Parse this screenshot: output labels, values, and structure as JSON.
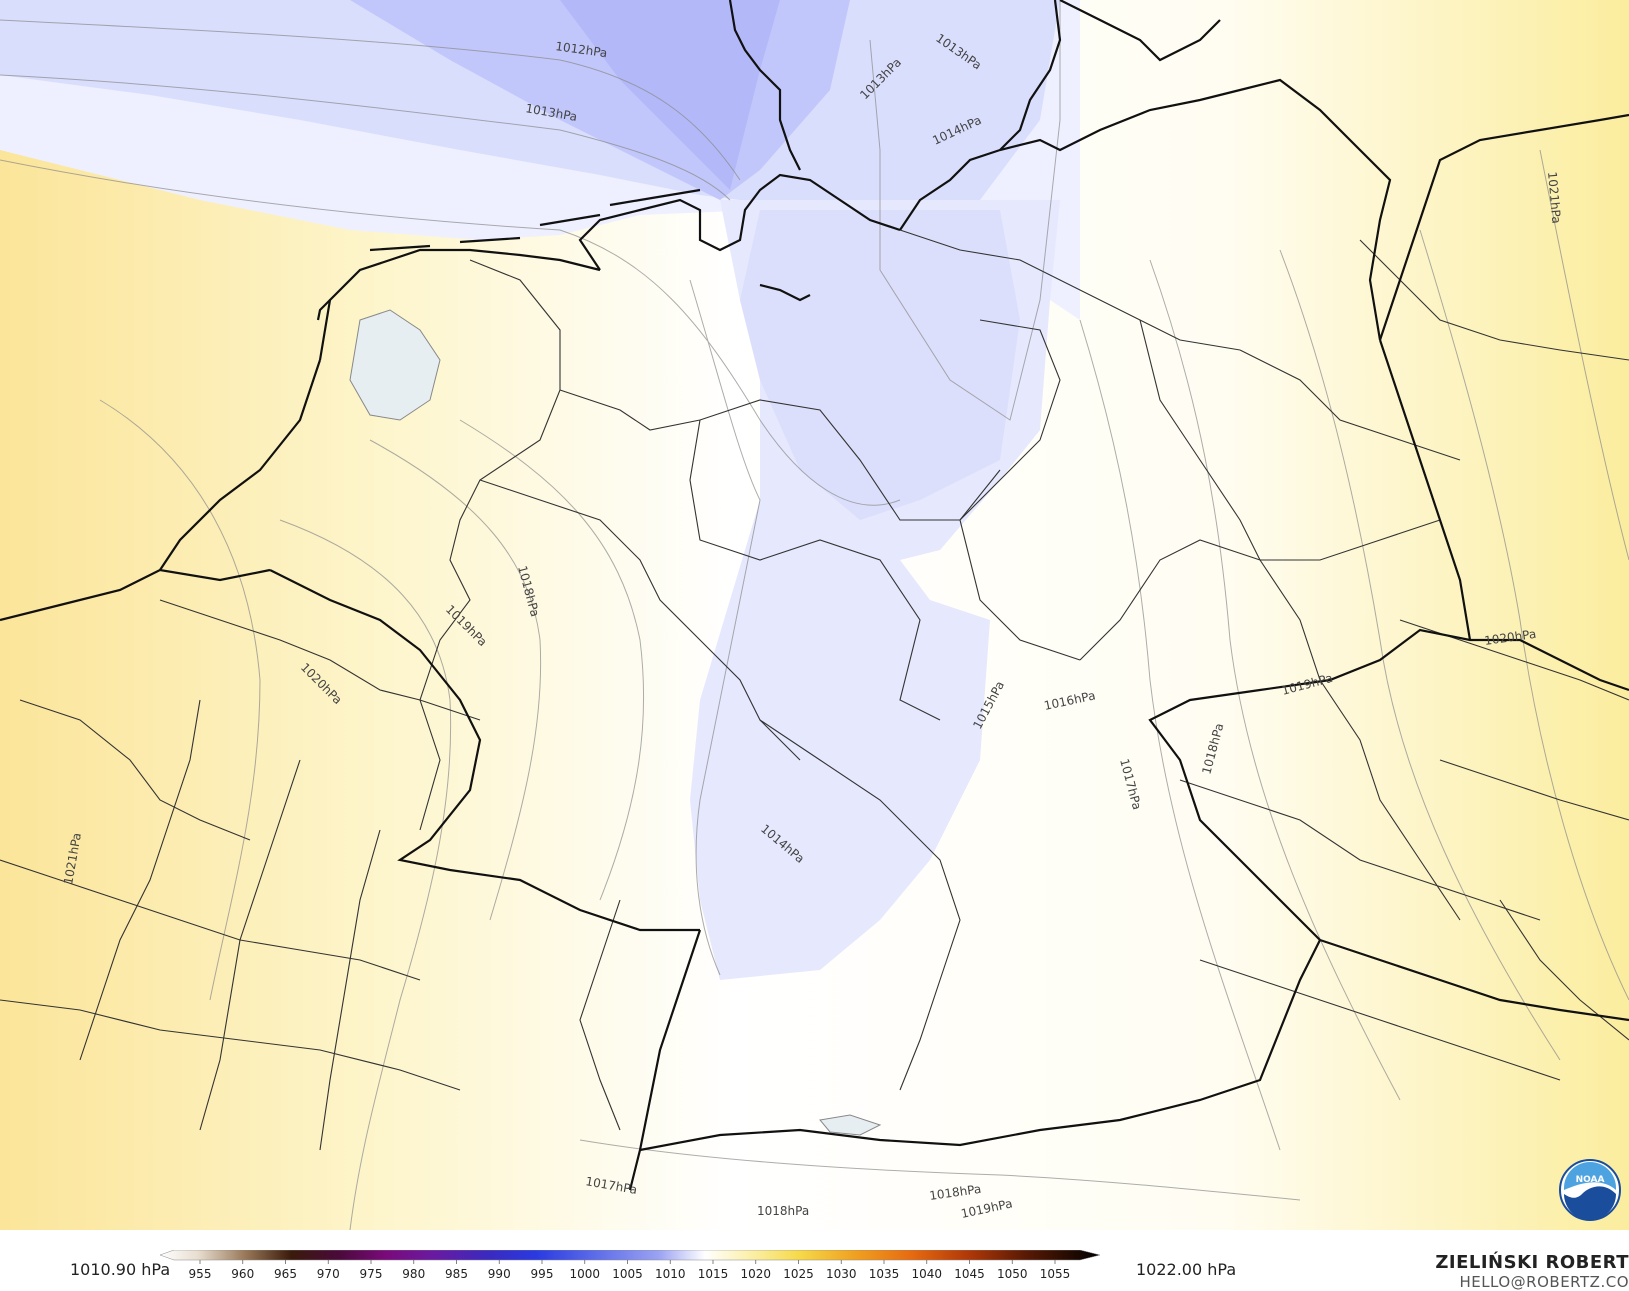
{
  "map": {
    "isobar_labels": [
      "1012hPa",
      "1013hPa",
      "1013hPa",
      "1013hPa",
      "1014hPa",
      "1014hPa",
      "1015hPa",
      "1016hPa",
      "1017hPa",
      "1017hPa",
      "1018hPa",
      "1018hPa",
      "1018hPa",
      "1018hPa",
      "1019hPa",
      "1019hPa",
      "1019hPa",
      "1020hPa",
      "1020hPa",
      "1021hPa",
      "1021hPa"
    ],
    "logo": "NOAA",
    "colors": {
      "low_pressure": "#b0b6f4",
      "mid_pressure": "#ffffff",
      "high_pressure": "#fbefa6",
      "borders": "#1a1a1a",
      "isobars": "#8a8a8a"
    }
  },
  "footer": {
    "min_value": "1010.90 hPa",
    "max_value": "1022.00 hPa",
    "colorbar_ticks": [
      "955",
      "960",
      "965",
      "970",
      "975",
      "980",
      "985",
      "990",
      "995",
      "1000",
      "1005",
      "1010",
      "1015",
      "1020",
      "1025",
      "1030",
      "1035",
      "1040",
      "1045",
      "1050",
      "1055"
    ],
    "author_name": "ZIELIŃSKI ROBERT",
    "author_email": "HELLO@ROBERTZ.CO"
  }
}
